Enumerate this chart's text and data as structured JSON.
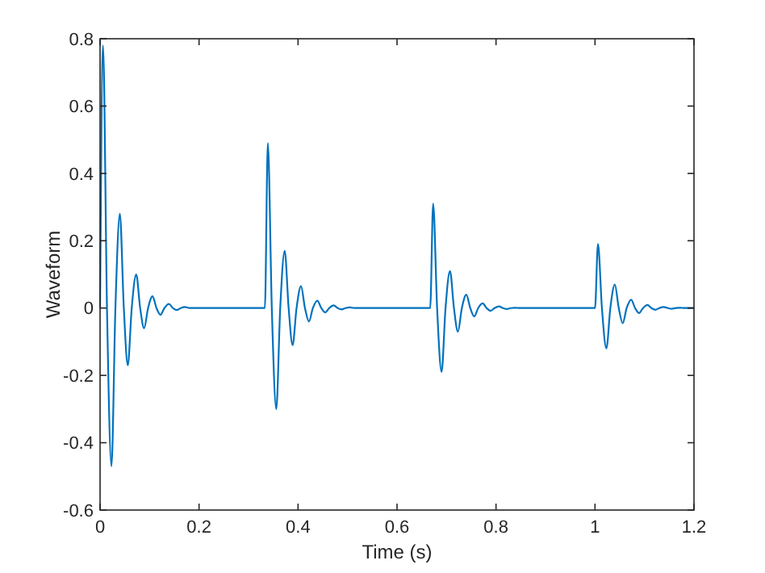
{
  "chart_data": {
    "type": "line",
    "xlabel": "Time (s)",
    "ylabel": "Waveform",
    "xlim": [
      0,
      1.2
    ],
    "ylim": [
      -0.6,
      0.8
    ],
    "xticks": [
      0,
      0.2,
      0.4,
      0.6,
      0.8,
      1,
      1.2
    ],
    "yticks": [
      -0.6,
      -0.4,
      -0.2,
      0,
      0.2,
      0.4,
      0.6,
      0.8
    ],
    "grid": false,
    "x": [
      0,
      0.006,
      0.014,
      0.023,
      0.031,
      0.04,
      0.048,
      0.056,
      0.064,
      0.073,
      0.081,
      0.089,
      0.097,
      0.106,
      0.114,
      0.122,
      0.13,
      0.139,
      0.147,
      0.155,
      0.163,
      0.172,
      0.18,
      0.333,
      0.339,
      0.347,
      0.356,
      0.364,
      0.373,
      0.381,
      0.389,
      0.397,
      0.406,
      0.414,
      0.422,
      0.43,
      0.439,
      0.447,
      0.455,
      0.463,
      0.472,
      0.48,
      0.488,
      0.496,
      0.505,
      0.513,
      0.667,
      0.673,
      0.681,
      0.69,
      0.698,
      0.707,
      0.715,
      0.723,
      0.731,
      0.74,
      0.748,
      0.756,
      0.764,
      0.773,
      0.781,
      0.789,
      0.797,
      0.806,
      0.814,
      0.822,
      0.83,
      0.839,
      0.847,
      1,
      1.006,
      1.014,
      1.023,
      1.031,
      1.04,
      1.048,
      1.056,
      1.064,
      1.073,
      1.081,
      1.089,
      1.097,
      1.106,
      1.114,
      1.122,
      1.13,
      1.139,
      1.147,
      1.155,
      1.163,
      1.172,
      1.18,
      1.2
    ],
    "series": [
      {
        "color": "#0072bd",
        "values": [
          0,
          0.78,
          0,
          -0.47,
          0,
          0.28,
          0,
          -0.17,
          0,
          0.1,
          0,
          -0.06,
          0,
          0.035,
          0,
          -0.02,
          0,
          0.012,
          0,
          -0.006,
          0,
          0.003,
          0,
          0,
          0.49,
          0,
          -0.3,
          0,
          0.17,
          0,
          -0.11,
          0,
          0.065,
          0,
          -0.04,
          0,
          0.022,
          0,
          -0.013,
          0,
          0.008,
          0,
          -0.004,
          0,
          0.002,
          0,
          0,
          0.31,
          0,
          -0.19,
          0,
          0.11,
          0,
          -0.07,
          0,
          0.04,
          0,
          -0.025,
          0,
          0.014,
          0,
          -0.008,
          0,
          0.005,
          0,
          -0.003,
          0,
          0.001,
          0,
          0,
          0.19,
          0,
          -0.12,
          0,
          0.07,
          0,
          -0.045,
          0,
          0.025,
          0,
          -0.015,
          0,
          0.009,
          0,
          -0.005,
          0,
          0.003,
          0,
          -0.002,
          0,
          0.001,
          0,
          0
        ]
      }
    ]
  }
}
